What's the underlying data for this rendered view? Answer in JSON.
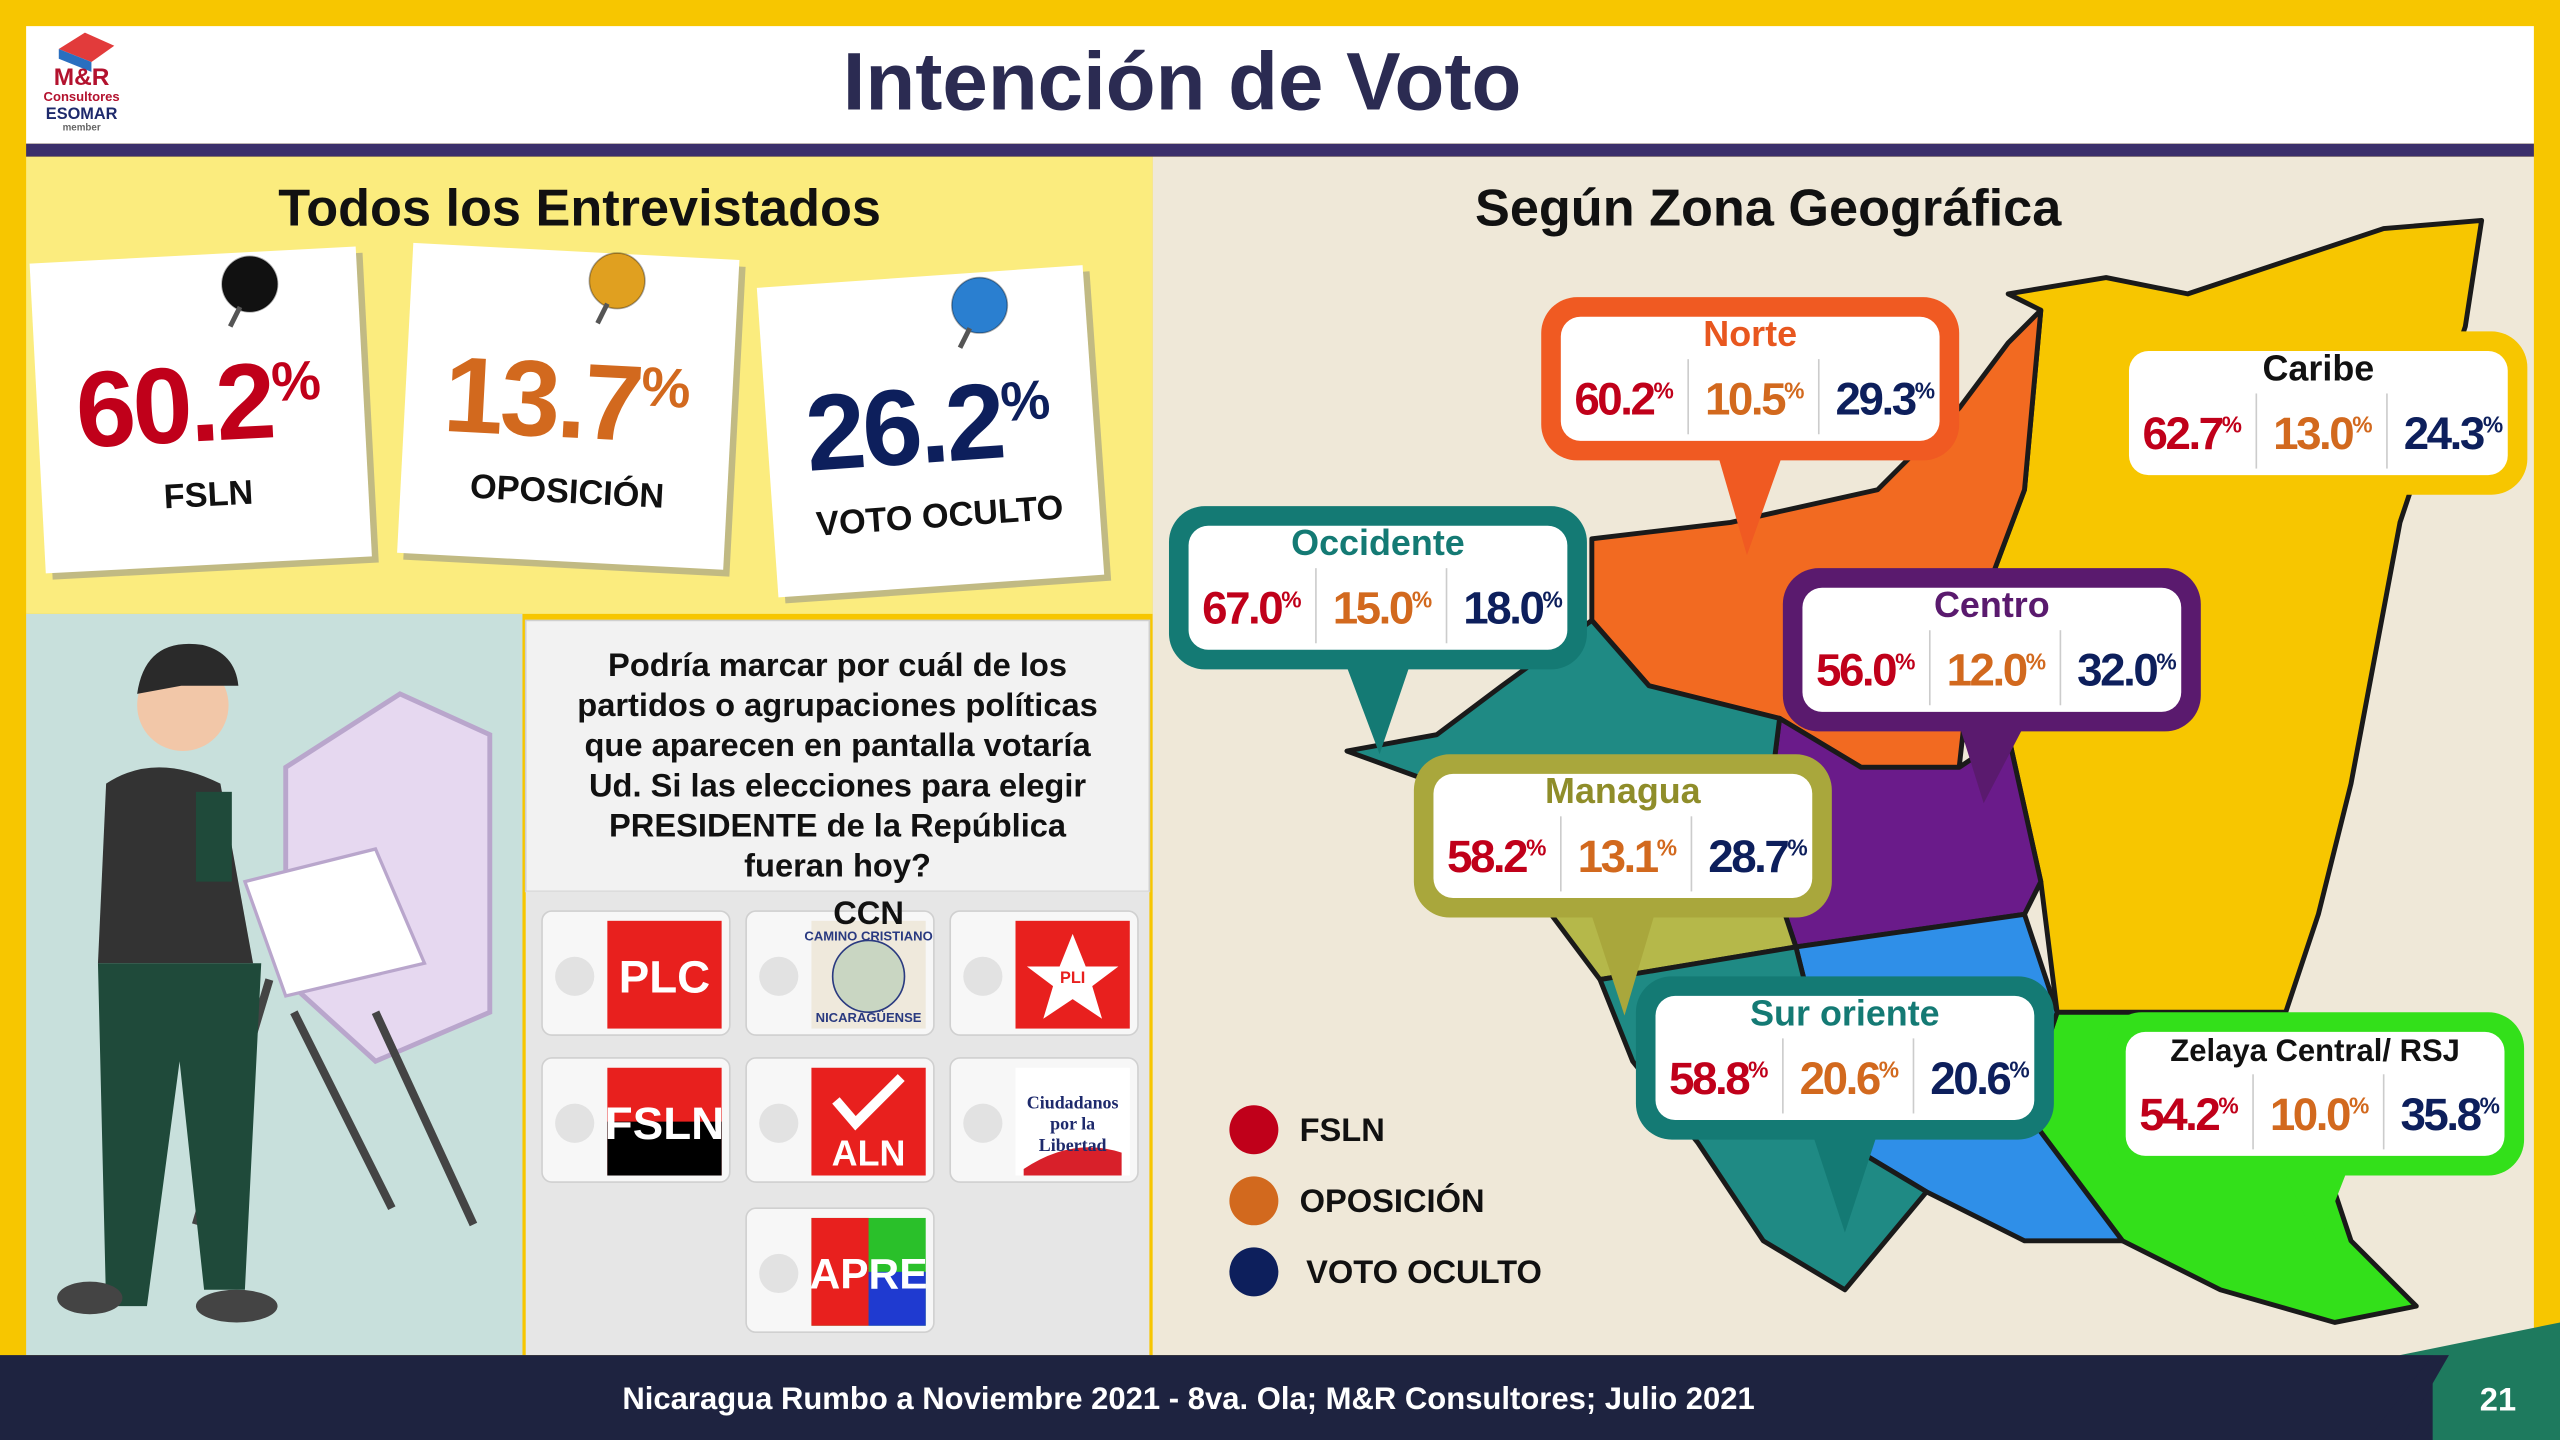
{
  "header": {
    "title": "Intención de Voto",
    "logo": [
      "M&R",
      "Consultores",
      "ESOMAR",
      "member"
    ]
  },
  "overall": {
    "title": "Todos los Entrevistados",
    "unit": "%",
    "items": [
      {
        "value": "60.2",
        "label": "FSLN"
      },
      {
        "value": "13.7",
        "label": "OPOSICIÓN"
      },
      {
        "value": "26.2",
        "label": "VOTO OCULTO"
      }
    ]
  },
  "question": [
    "Podría marcar por cuál de los",
    "partidos o agrupaciones políticas",
    "que aparecen en pantalla votaría",
    "Ud. Si las elecciones para elegir",
    "PRESIDENTE de la República",
    "fueran hoy?"
  ],
  "parties": [
    {
      "text": [
        "PLC"
      ]
    },
    {
      "name": "CCN",
      "text": [
        "CAMINO CRISTIANO",
        "NICARAGÜENSE"
      ]
    },
    {
      "text": [
        "PLI"
      ]
    },
    {
      "text": [
        "FSLN"
      ]
    },
    {
      "text": [
        "ALN"
      ]
    },
    {
      "text": [
        "Ciudadanos",
        "por la",
        "Libertad"
      ]
    },
    {
      "text": [
        "APRE"
      ]
    }
  ],
  "zones": {
    "title": "Según Zona Geográfica",
    "unit": "%",
    "regions": [
      {
        "name": "Norte",
        "values": [
          "60.2",
          "10.5",
          "29.3"
        ]
      },
      {
        "name": "Caribe",
        "values": [
          "62.7",
          "13.0",
          "24.3"
        ]
      },
      {
        "name": "Occidente",
        "values": [
          "67.0",
          "15.0",
          "18.0"
        ]
      },
      {
        "name": "Centro",
        "values": [
          "56.0",
          "12.0",
          "32.0"
        ]
      },
      {
        "name": "Managua",
        "values": [
          "58.2",
          "13.1",
          "28.7"
        ]
      },
      {
        "name": "Sur oriente",
        "values": [
          "58.8",
          "20.6",
          "20.6"
        ]
      },
      {
        "name": "Zelaya Central/ RSJ",
        "values": [
          "54.2",
          "10.0",
          "35.8"
        ]
      }
    ]
  },
  "legend": [
    {
      "label": "FSLN",
      "color": "#c0001a"
    },
    {
      "label": "OPOSICIÓN",
      "color": "#d2691e"
    },
    {
      "label": "VOTO OCULTO",
      "color": "#0d1f5c"
    }
  ],
  "footer": {
    "text": "Nicaragua Rumbo a Noviembre 2021 -  8va. Ola; M&R Consultores; Julio 2021",
    "page": "21"
  }
}
